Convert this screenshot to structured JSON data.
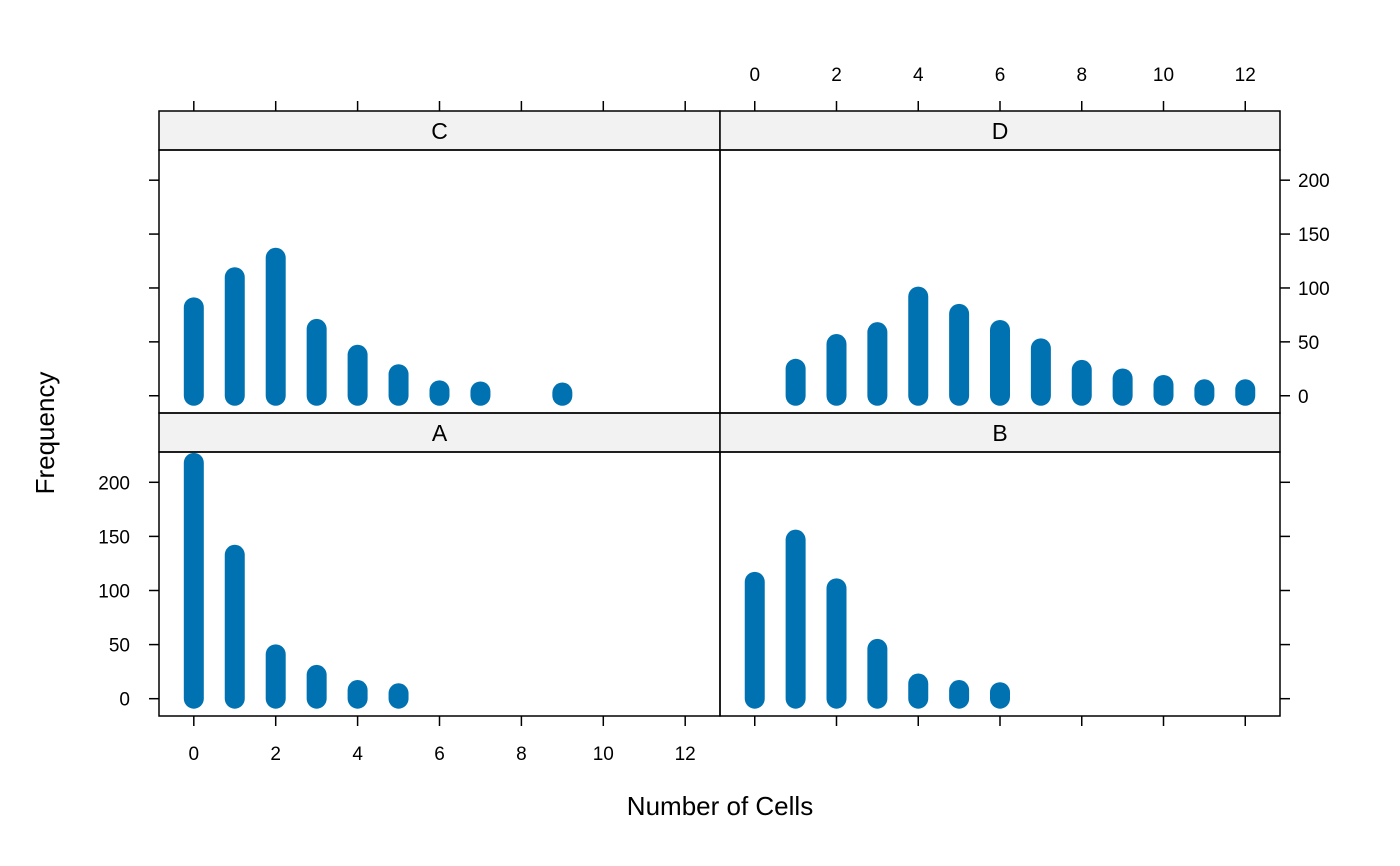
{
  "chart_data": {
    "type": "bar",
    "xlabel": "Number of Cells",
    "ylabel": "Frequency",
    "xlim": [
      -0.85,
      12.85
    ],
    "ylim": [
      -16,
      228
    ],
    "x_ticks": [
      0,
      2,
      4,
      6,
      8,
      10,
      12
    ],
    "x_minor_ticks": [
      0,
      2,
      4,
      6,
      8,
      10,
      12
    ],
    "y_ticks": [
      0,
      50,
      100,
      150,
      200
    ],
    "bar_color": "#0072B2",
    "strip_color": "#F2F2F2",
    "panels": [
      {
        "label": "A",
        "row": "bottom",
        "col": "left",
        "x": [
          0,
          1,
          2,
          3,
          4,
          5
        ],
        "values": [
          218,
          133,
          41,
          22,
          8,
          5
        ]
      },
      {
        "label": "B",
        "row": "bottom",
        "col": "right",
        "x": [
          0,
          1,
          2,
          3,
          4,
          5,
          6
        ],
        "values": [
          108,
          147,
          102,
          46,
          14,
          8,
          6
        ]
      },
      {
        "label": "C",
        "row": "top",
        "col": "left",
        "x": [
          0,
          1,
          2,
          3,
          4,
          5,
          6,
          7,
          9
        ],
        "values": [
          82,
          110,
          128,
          62,
          38,
          20,
          5,
          4,
          3
        ]
      },
      {
        "label": "D",
        "row": "top",
        "col": "right",
        "x": [
          1,
          2,
          3,
          4,
          5,
          6,
          7,
          8,
          9,
          10,
          11,
          12
        ],
        "values": [
          25,
          48,
          59,
          92,
          76,
          61,
          44,
          24,
          16,
          10,
          6,
          6
        ]
      }
    ]
  }
}
